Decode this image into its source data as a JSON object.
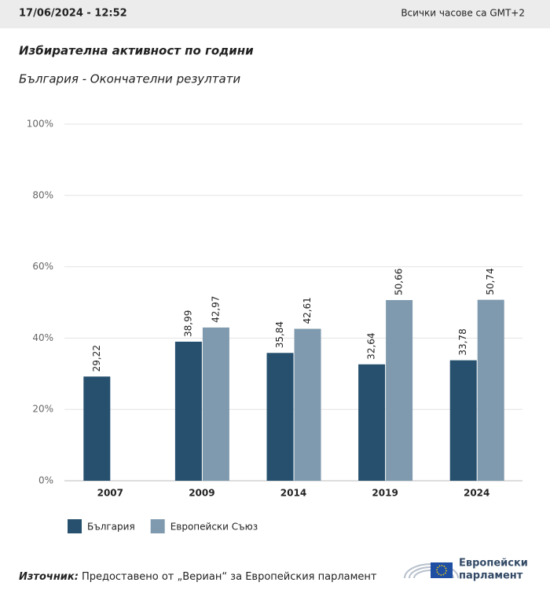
{
  "page": {
    "datetime": "17/06/2024 - 12:52",
    "timezone": "Всички часове са GMT+2",
    "source_label": "Източник:",
    "source_text": "Предоставено от „Вериан“ за Европейския парламент",
    "logo_lines": [
      "Европейски",
      "парламент"
    ]
  },
  "chart_data": {
    "type": "bar",
    "title": "Избирателна активност по години",
    "subtitle": "България - Окончателни резултати",
    "categories": [
      "2007",
      "2009",
      "2014",
      "2019",
      "2024"
    ],
    "series": [
      {
        "name": "България",
        "color": "#26506e",
        "values": [
          29.22,
          38.99,
          35.84,
          32.64,
          33.78
        ],
        "value_labels": [
          "29,22",
          "38,99",
          "35,84",
          "32,64",
          "33,78"
        ]
      },
      {
        "name": "Европейски Съюз",
        "color": "#7f9aae",
        "values": [
          null,
          42.97,
          42.61,
          50.66,
          50.74
        ],
        "value_labels": [
          null,
          "42,97",
          "42,61",
          "50,66",
          "50,74"
        ]
      }
    ],
    "ylim": [
      0,
      100
    ],
    "yticks": [
      {
        "value": 0,
        "label": "0%"
      },
      {
        "value": 20,
        "label": "20%"
      },
      {
        "value": 40,
        "label": "40%"
      },
      {
        "value": 60,
        "label": "60%"
      },
      {
        "value": 80,
        "label": "80%"
      },
      {
        "value": 100,
        "label": "100%"
      }
    ],
    "grid": true,
    "legend": "bottom-left"
  }
}
